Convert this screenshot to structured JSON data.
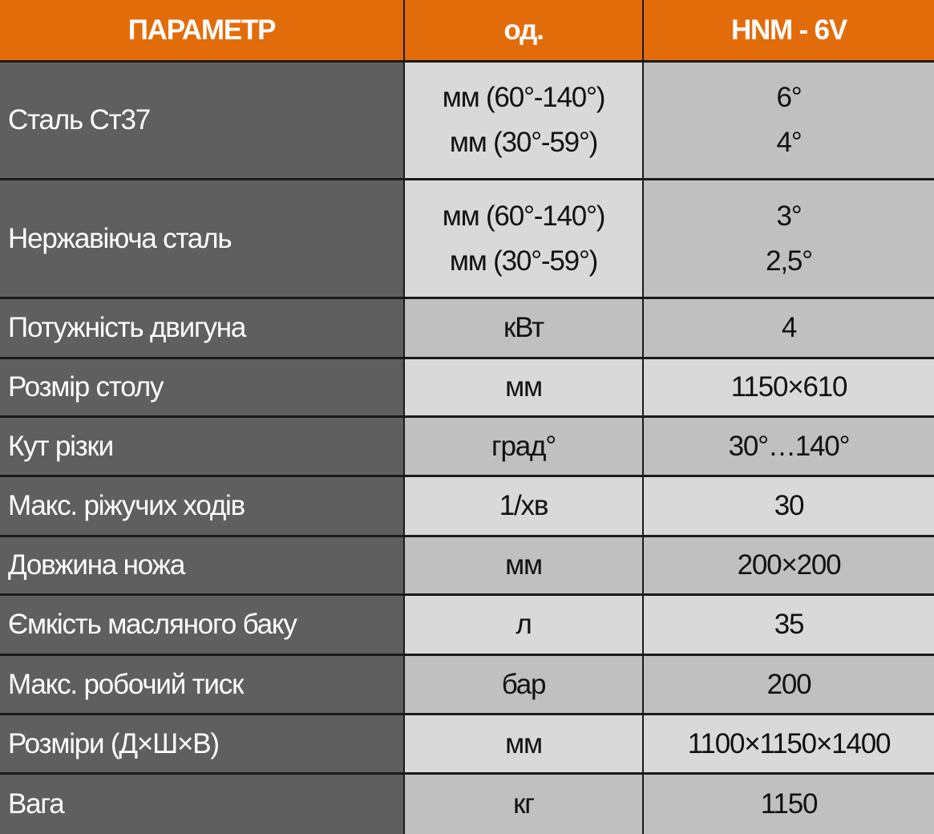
{
  "table": {
    "header": [
      "ПАРАМЕТР",
      "од.",
      "HNM - 6V"
    ],
    "rows": [
      [
        "Сталь Ст37",
        [
          "мм (60°-140°)",
          "мм (30°-59°)"
        ],
        [
          "6°",
          "4°"
        ]
      ],
      [
        "Нержавіюча сталь",
        [
          "мм (60°-140°)",
          "мм (30°-59°)"
        ],
        [
          "3°",
          "2,5°"
        ]
      ],
      [
        "Потужність двигуна",
        [
          "кВт"
        ],
        [
          "4"
        ]
      ],
      [
        "Розмір столу",
        [
          "мм"
        ],
        [
          "1150×610"
        ]
      ],
      [
        "Кут різки",
        [
          "град°"
        ],
        [
          "30°…140°"
        ]
      ],
      [
        "Макс. ріжучих ходів",
        [
          "1/хв"
        ],
        [
          "30"
        ]
      ],
      [
        "Довжина ножа",
        [
          "мм"
        ],
        [
          "200×200"
        ]
      ],
      [
        "Ємкість масляного баку",
        [
          "л"
        ],
        [
          "35"
        ]
      ],
      [
        "Макс. робочий тиск",
        [
          "бар"
        ],
        [
          "200"
        ]
      ],
      [
        "Розміри (Д×Ш×В)",
        [
          "мм"
        ],
        [
          "1100×1150×1400"
        ]
      ],
      [
        "Вага",
        [
          "кг"
        ],
        [
          "1150"
        ]
      ]
    ]
  }
}
